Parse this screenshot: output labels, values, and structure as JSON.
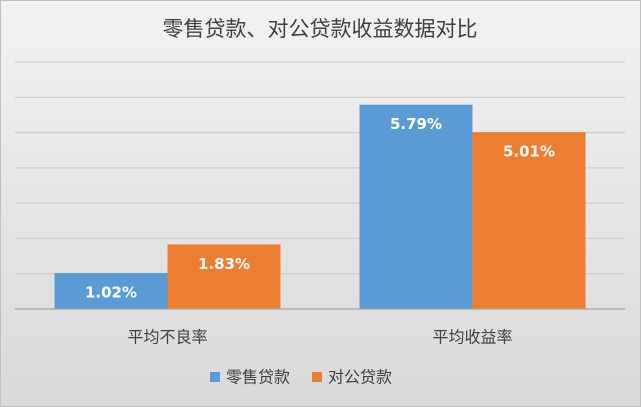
{
  "chart_data": {
    "type": "bar",
    "title": "零售贷款、对公贷款收益数据对比",
    "categories": [
      "平均不良率",
      "平均收益率"
    ],
    "series": [
      {
        "name": "零售贷款",
        "color": "#5b9bd5",
        "values": [
          1.02,
          5.79
        ],
        "value_labels": [
          "1.02%",
          "5.79%"
        ]
      },
      {
        "name": "对公贷款",
        "color": "#ed7d31",
        "values": [
          1.83,
          5.01
        ],
        "value_labels": [
          "1.83%",
          "5.01%"
        ]
      }
    ],
    "ylim": [
      0,
      7
    ],
    "yticks": [
      0,
      1,
      2,
      3,
      4,
      5,
      6,
      7
    ],
    "grid": true,
    "legend": "bottom"
  }
}
